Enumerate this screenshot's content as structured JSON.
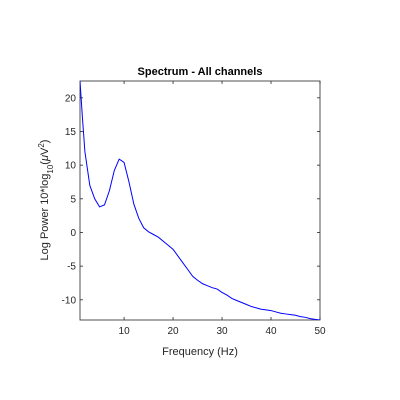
{
  "chart_data": {
    "type": "line",
    "title": "Spectrum - All channels",
    "xlabel": "Frequency (Hz)",
    "ylabel_parts": {
      "pre": "Log Power 10*log",
      "sub": "10",
      "mid": "(",
      "mu": "μ",
      "unit": "V",
      "sup": "2",
      "post": ")"
    },
    "xlim": [
      1,
      50
    ],
    "ylim": [
      -13,
      22.5
    ],
    "xticks": [
      10,
      20,
      30,
      40,
      50
    ],
    "yticks": [
      -10,
      -5,
      0,
      5,
      10,
      15,
      20
    ],
    "grid": false,
    "colors": {
      "line": "#0000ff",
      "axis": "#262626"
    },
    "series": [
      {
        "x": [
          1,
          1.5,
          2,
          3,
          4,
          5,
          6,
          7,
          8,
          9,
          10,
          11,
          12,
          13,
          14,
          15,
          16,
          17,
          18,
          19,
          20,
          21,
          22,
          23,
          24,
          25,
          26,
          27,
          28,
          29,
          30,
          31,
          32,
          33,
          34,
          35,
          36,
          37,
          38,
          39,
          40,
          41,
          42,
          43,
          44,
          45,
          46,
          47,
          48,
          49,
          50
        ],
        "y": [
          22.5,
          17,
          12,
          7,
          5,
          3.8,
          4.1,
          6.2,
          9.2,
          10.9,
          10.4,
          7.5,
          4.2,
          2.1,
          0.7,
          0.1,
          -0.3,
          -0.7,
          -1.3,
          -1.9,
          -2.5,
          -3.5,
          -4.5,
          -5.5,
          -6.5,
          -7.1,
          -7.6,
          -7.9,
          -8.2,
          -8.4,
          -8.9,
          -9.3,
          -9.8,
          -10.1,
          -10.4,
          -10.7,
          -11.0,
          -11.2,
          -11.4,
          -11.5,
          -11.6,
          -11.8,
          -12.0,
          -12.1,
          -12.2,
          -12.3,
          -12.5,
          -12.6,
          -12.8,
          -12.9,
          -13.0
        ]
      }
    ]
  }
}
